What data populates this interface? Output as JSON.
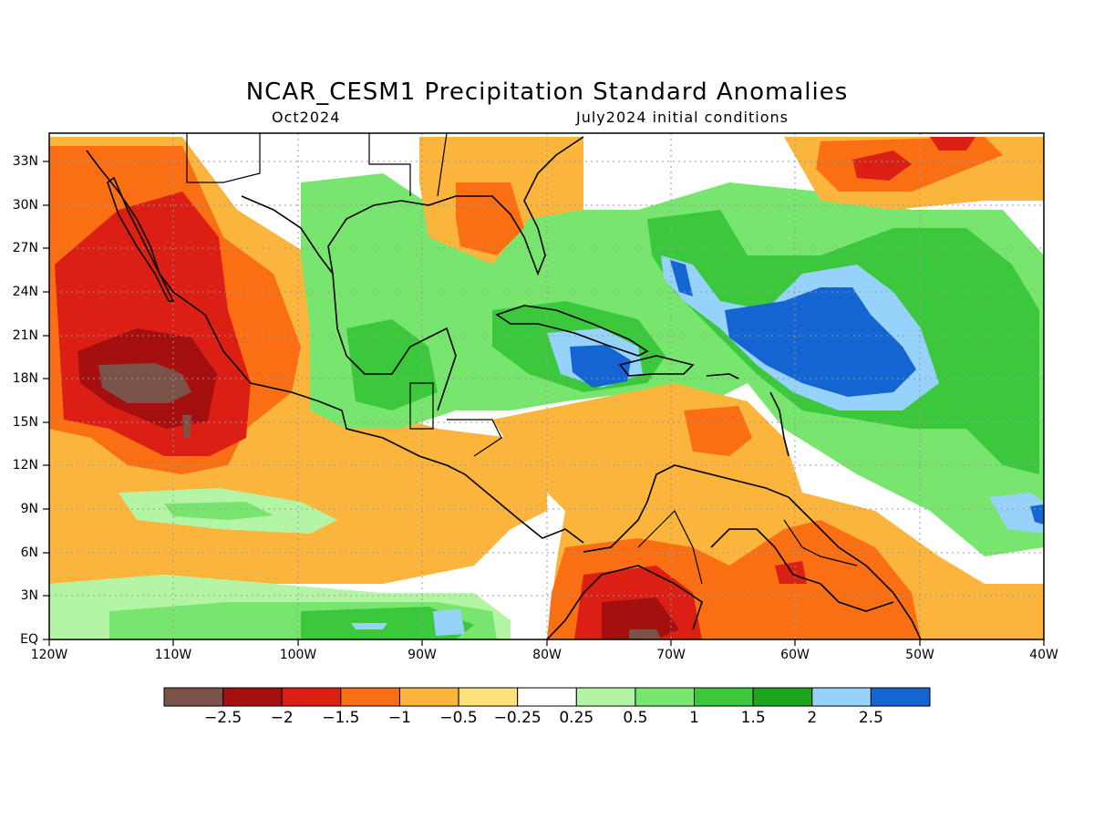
{
  "title": "NCAR_CESM1 Precipitation Standard Anomalies",
  "subtitle_left": "Oct2024",
  "subtitle_right": "July2024 initial conditions",
  "lat_labels": [
    "33N",
    "30N",
    "27N",
    "24N",
    "21N",
    "18N",
    "15N",
    "12N",
    "9N",
    "6N",
    "3N",
    "EQ"
  ],
  "lon_labels": [
    "120W",
    "110W",
    "100W",
    "90W",
    "80W",
    "70W",
    "60W",
    "50W",
    "40W"
  ],
  "colorbar": {
    "colors": [
      "#7b5248",
      "#a50f0f",
      "#dc1f14",
      "#fa6e14",
      "#fbb43c",
      "#fde17a",
      "#ffffff",
      "#b4f5a5",
      "#78e66e",
      "#3cc83c",
      "#1ea51e",
      "#96d2fa",
      "#1464d2"
    ],
    "labels": [
      "-2.5",
      "-2",
      "-1.5",
      "-1",
      "-0.5",
      "-0.25",
      "0.25",
      "0.5",
      "1",
      "1.5",
      "2",
      "2.5"
    ]
  },
  "map": {
    "extent": {
      "lon_min": -120,
      "lon_max": -40,
      "lat_min": 0,
      "lat_max": 35
    },
    "graticule": "dotted",
    "field": "precipitation standard anomaly"
  }
}
